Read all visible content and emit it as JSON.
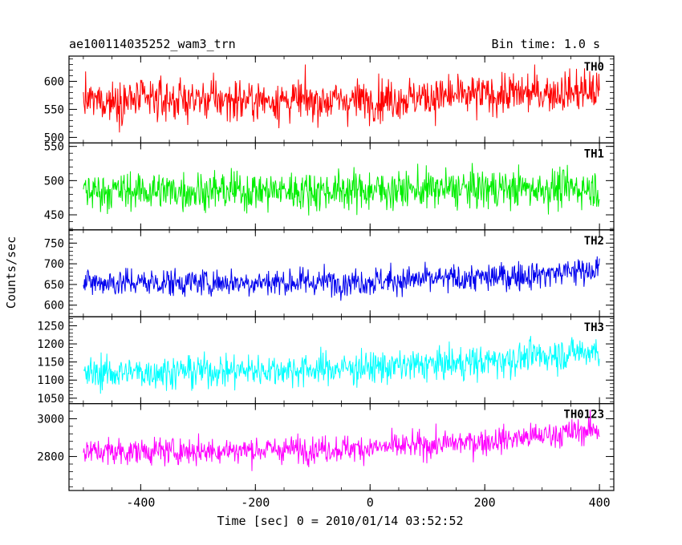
{
  "header": {
    "title": "ae100114035252_wam3_trn",
    "bin_time": "Bin time: 1.0 s"
  },
  "chart_data": {
    "type": "line",
    "title": "ae100114035252_wam3_trn",
    "subtitle": "Bin time: 1.0 s",
    "xlabel": "Time [sec] 0 = 2010/01/14 03:52:52",
    "ylabel": "Counts/sec",
    "xlim": [
      -525,
      425
    ],
    "xticks": [
      -400,
      -200,
      0,
      200,
      400
    ],
    "x_start": -500,
    "x_end": 400,
    "bin_time_s": 1.0,
    "grid": false,
    "panels": [
      {
        "name": "TH0",
        "color": "#ff0000",
        "ylim": [
          490,
          645
        ],
        "yticks": [
          500,
          550,
          600
        ],
        "anchors": [
          [
            -500,
            565
          ],
          [
            -300,
            568
          ],
          [
            -100,
            565
          ],
          [
            0,
            567
          ],
          [
            100,
            572
          ],
          [
            200,
            575
          ],
          [
            300,
            580
          ],
          [
            400,
            583
          ]
        ],
        "noise": 26
      },
      {
        "name": "TH1",
        "color": "#00ee00",
        "ylim": [
          428,
          555
        ],
        "yticks": [
          450,
          500,
          550
        ],
        "anchors": [
          [
            -500,
            485
          ],
          [
            -200,
            485
          ],
          [
            0,
            486
          ],
          [
            200,
            488
          ],
          [
            400,
            489
          ]
        ],
        "noise": 20
      },
      {
        "name": "TH2",
        "color": "#0000ee",
        "ylim": [
          572,
          782
        ],
        "yticks": [
          600,
          650,
          700,
          750
        ],
        "anchors": [
          [
            -500,
            655
          ],
          [
            -300,
            655
          ],
          [
            -100,
            656
          ],
          [
            0,
            658
          ],
          [
            100,
            662
          ],
          [
            200,
            666
          ],
          [
            300,
            675
          ],
          [
            400,
            688
          ]
        ],
        "noise": 24
      },
      {
        "name": "TH3",
        "color": "#00ffff",
        "ylim": [
          1035,
          1275
        ],
        "yticks": [
          1050,
          1100,
          1150,
          1200,
          1250
        ],
        "anchors": [
          [
            -500,
            1118
          ],
          [
            -300,
            1125
          ],
          [
            -100,
            1130
          ],
          [
            0,
            1135
          ],
          [
            100,
            1142
          ],
          [
            200,
            1150
          ],
          [
            300,
            1168
          ],
          [
            400,
            1182
          ]
        ],
        "noise": 32
      },
      {
        "name": "TH0123",
        "color": "#ff00ff",
        "ylim": [
          2620,
          3080
        ],
        "yticks": [
          2800,
          3000
        ],
        "anchors": [
          [
            -500,
            2825
          ],
          [
            -300,
            2830
          ],
          [
            -100,
            2840
          ],
          [
            0,
            2845
          ],
          [
            100,
            2860
          ],
          [
            200,
            2880
          ],
          [
            300,
            2910
          ],
          [
            400,
            2945
          ]
        ],
        "noise": 50
      }
    ]
  }
}
